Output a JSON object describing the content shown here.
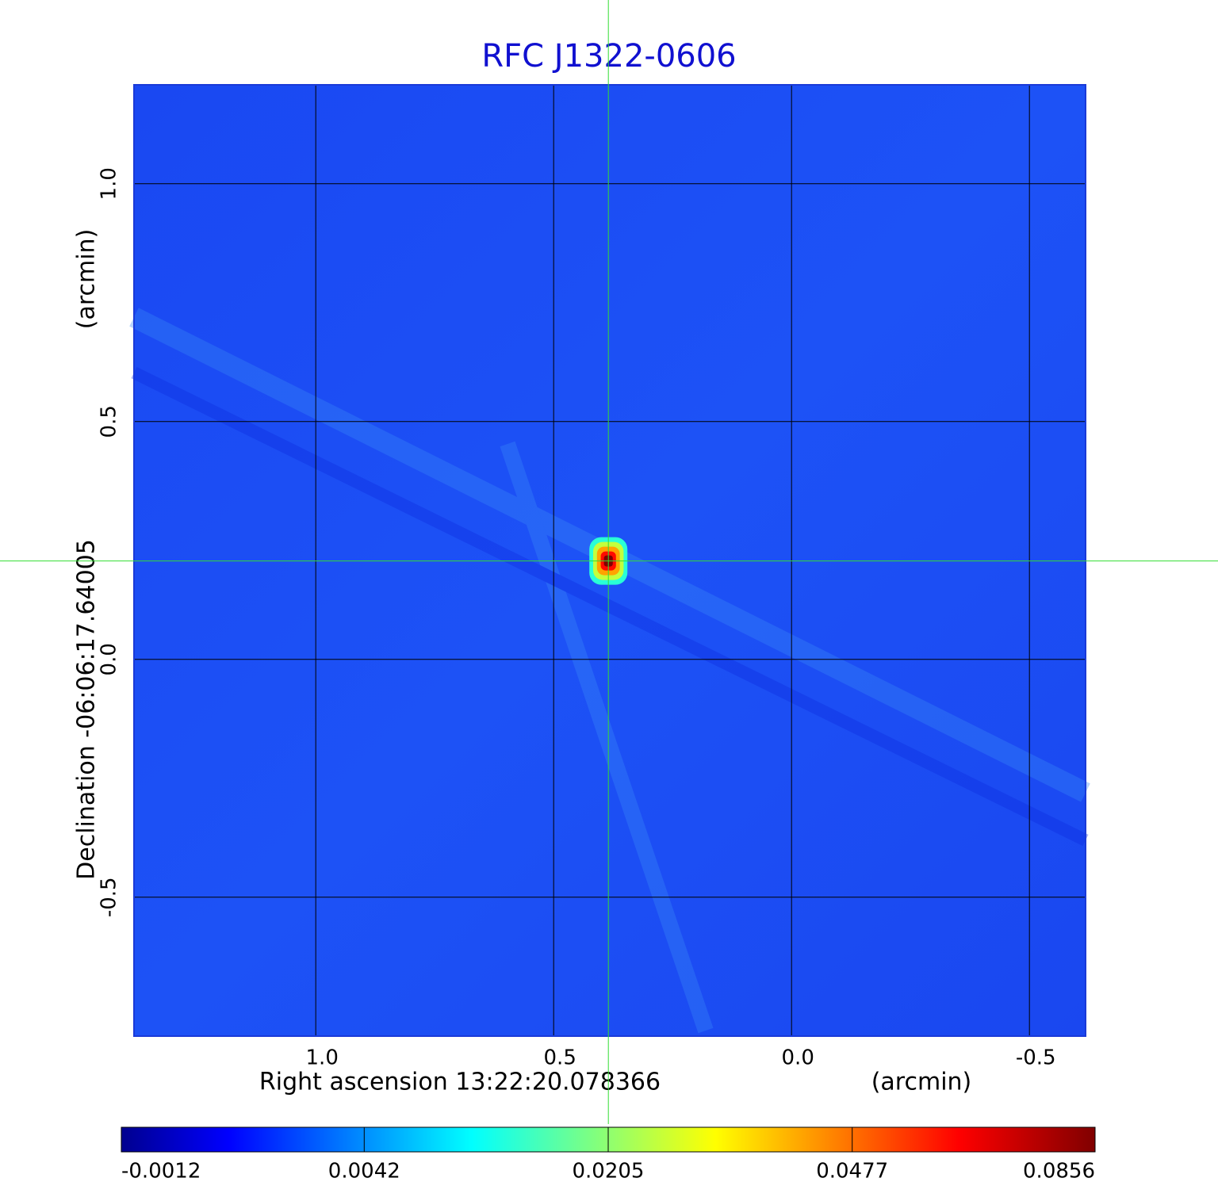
{
  "chart_data": {
    "type": "image",
    "title": "RFC J1322-0606",
    "x_label": "Right ascension  13:22:20.078366",
    "x_unit": "(arcmin)",
    "y_label": "Declination  -06:06:17.64005",
    "y_unit": "(arcmin)",
    "xlim": [
      1.382,
      -0.618
    ],
    "ylim": [
      1.208,
      -0.792
    ],
    "xticks": [
      {
        "value": 1,
        "label": "1.0"
      },
      {
        "value": 0.5,
        "label": "0.5"
      },
      {
        "value": 0,
        "label": "0.0"
      },
      {
        "value": -0.5,
        "label": "-0.5"
      }
    ],
    "yticks": [
      {
        "value": 1,
        "label": "1.0"
      },
      {
        "value": 0.5,
        "label": "0.5"
      },
      {
        "value": 0,
        "label": "0.0"
      },
      {
        "value": -0.5,
        "label": "-0.5"
      }
    ],
    "grid": true,
    "crosshair": {
      "x": 0.385,
      "y": 0.207
    },
    "source": {
      "x": 0.385,
      "y": 0.207,
      "peak": 0.0856
    },
    "colormap": "jet",
    "cscale": "sqrt",
    "clim": [
      -0.0012,
      0.0856
    ],
    "cticks": [
      -0.0012,
      0.0042,
      0.0205,
      0.0477,
      0.0856
    ]
  }
}
